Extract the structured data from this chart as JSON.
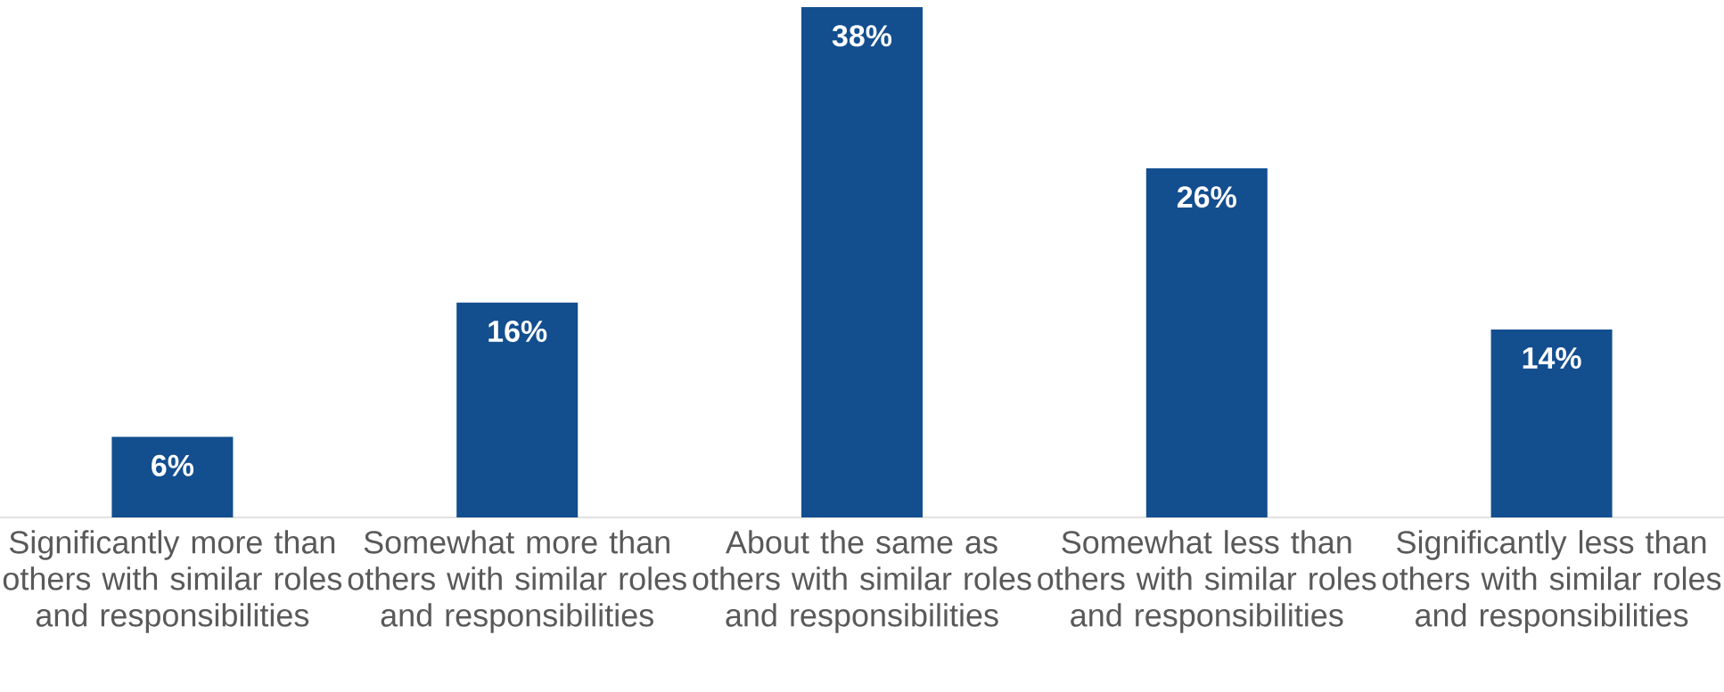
{
  "chart_data": {
    "type": "bar",
    "categories": [
      "Significantly more than others with similar roles and responsibilities",
      "Somewhat more than others with similar roles and responsibilities",
      "About the same as others with similar roles and responsibilities",
      "Somewhat less than others with similar roles and responsibilities",
      "Significantly less than others with similar roles and responsibilities"
    ],
    "values": [
      6,
      16,
      38,
      26,
      14
    ],
    "value_labels": [
      "6%",
      "16%",
      "38%",
      "26%",
      "14%"
    ],
    "color": "#134e8f",
    "tick_labels": "x"
  }
}
